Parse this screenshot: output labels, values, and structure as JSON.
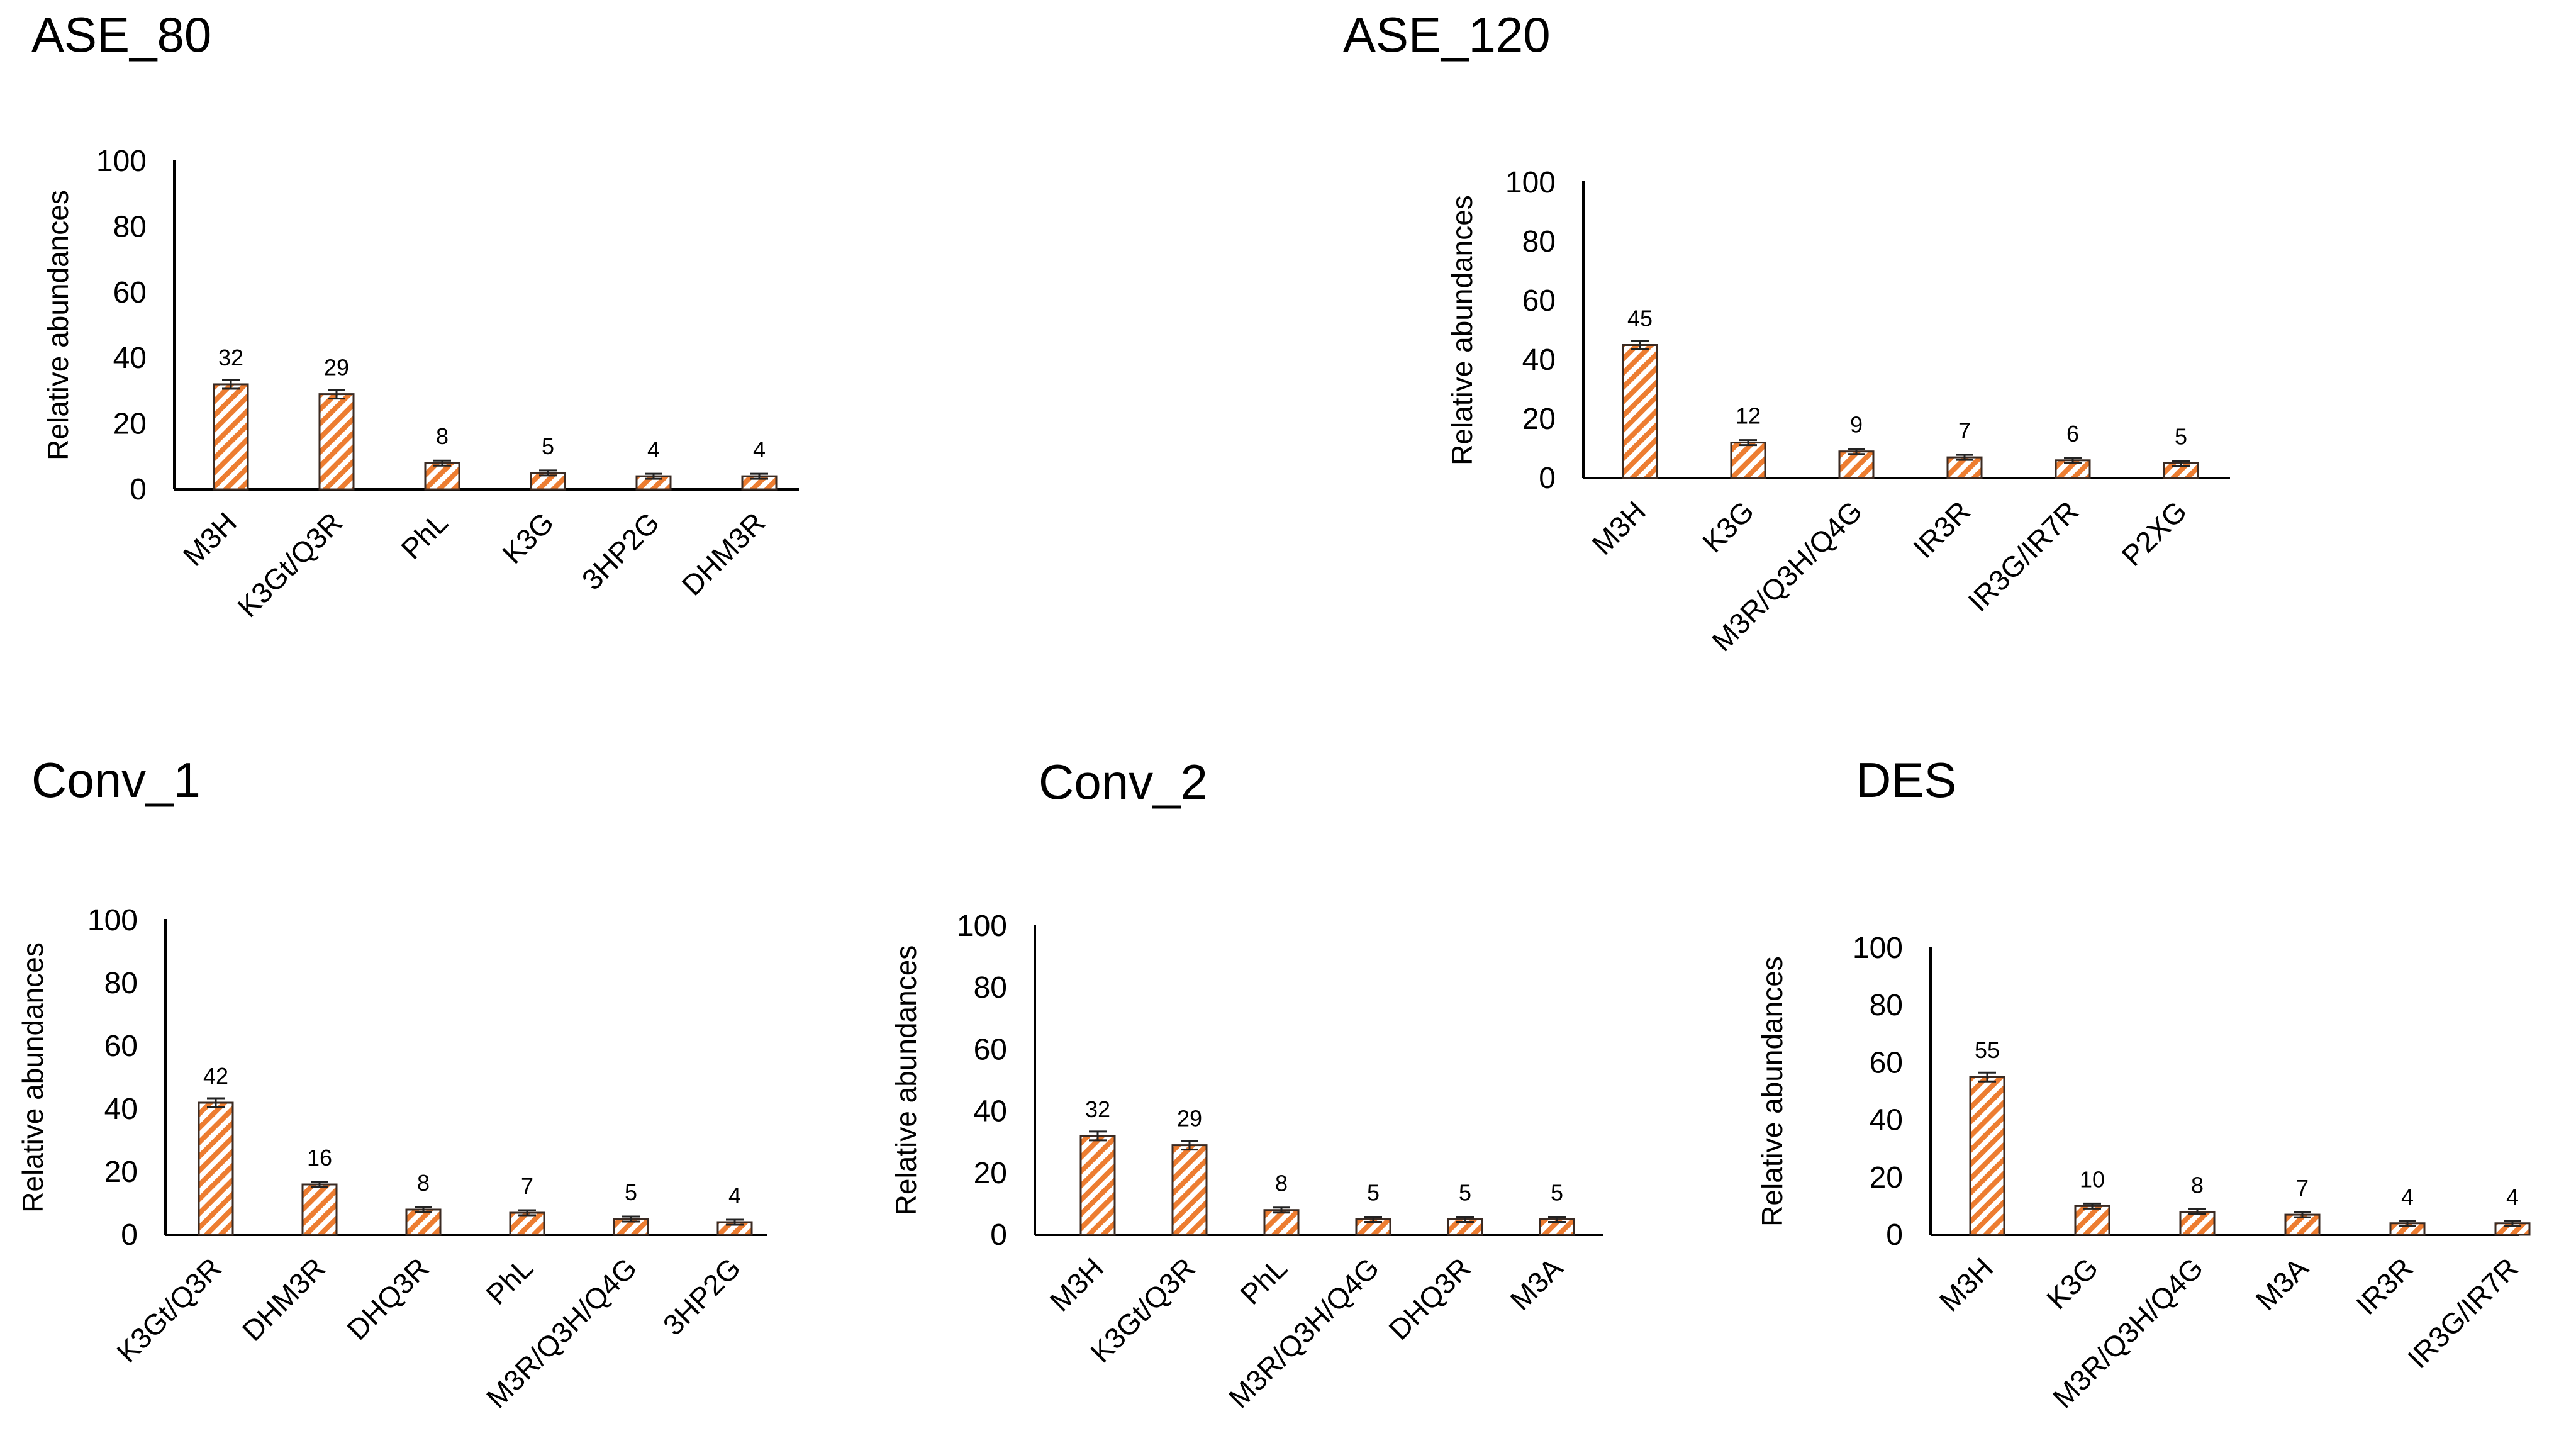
{
  "style": {
    "bar_color": "#ED7D31",
    "bar_pattern": "diagonal orange stripes on white",
    "axis_color": "#000000"
  },
  "chart_data": [
    {
      "type": "bar",
      "title": "ASE_80",
      "ylabel": "Relative abundances",
      "ylim": [
        0,
        100
      ],
      "yticks": [
        "0",
        "20",
        "40",
        "60",
        "80",
        "100"
      ],
      "categories": [
        "M3H",
        "K3Gt/Q3R",
        "PhL",
        "K3G",
        "3HP2G",
        "DHM3R"
      ],
      "values": [
        32,
        29,
        8,
        5,
        4,
        4
      ],
      "labels": [
        "32",
        "29",
        "8",
        "5",
        "4",
        "4"
      ],
      "grid": false,
      "error_bars": true
    },
    {
      "type": "bar",
      "title": "ASE_120",
      "ylabel": "Relative abundances",
      "ylim": [
        0,
        100
      ],
      "yticks": [
        "0",
        "20",
        "40",
        "60",
        "80",
        "100"
      ],
      "categories": [
        "M3H",
        "K3G",
        "M3R/Q3H/Q4G",
        "IR3R",
        "IR3G/IR7R",
        "P2XG"
      ],
      "values": [
        45,
        12,
        9,
        7,
        6,
        5
      ],
      "labels": [
        "45",
        "12",
        "9",
        "7",
        "6",
        "5"
      ],
      "grid": false,
      "error_bars": true
    },
    {
      "type": "bar",
      "title": "Conv_1",
      "ylabel": "Relative abundances",
      "ylim": [
        0,
        100
      ],
      "yticks": [
        "0",
        "20",
        "40",
        "60",
        "80",
        "100"
      ],
      "categories": [
        "K3Gt/Q3R",
        "DHM3R",
        "DHQ3R",
        "PhL",
        "M3R/Q3H/Q4G",
        "3HP2G"
      ],
      "values": [
        42,
        16,
        8,
        7,
        5,
        4
      ],
      "labels": [
        "42",
        "16",
        "8",
        "7",
        "5",
        "4"
      ],
      "grid": false,
      "error_bars": true
    },
    {
      "type": "bar",
      "title": "Conv_2",
      "ylabel": "Relative abundances",
      "ylim": [
        0,
        100
      ],
      "yticks": [
        "0",
        "20",
        "40",
        "60",
        "80",
        "100"
      ],
      "categories": [
        "M3H",
        "K3Gt/Q3R",
        "PhL",
        "M3R/Q3H/Q4G",
        "DHQ3R",
        "M3A"
      ],
      "values": [
        32,
        29,
        8,
        5,
        5,
        5
      ],
      "labels": [
        "32",
        "29",
        "8",
        "5",
        "5",
        "5"
      ],
      "grid": false,
      "error_bars": true
    },
    {
      "type": "bar",
      "title": "DES",
      "ylabel": "Relative abundances",
      "ylim": [
        0,
        100
      ],
      "yticks": [
        "0",
        "20",
        "40",
        "60",
        "80",
        "100"
      ],
      "categories": [
        "M3H",
        "K3G",
        "M3R/Q3H/Q4G",
        "M3A",
        "IR3R",
        "IR3G/IR7R"
      ],
      "values": [
        55,
        10,
        8,
        7,
        4,
        4
      ],
      "labels": [
        "55",
        "10",
        "8",
        "7",
        "4",
        "4"
      ],
      "grid": false,
      "error_bars": true
    }
  ]
}
